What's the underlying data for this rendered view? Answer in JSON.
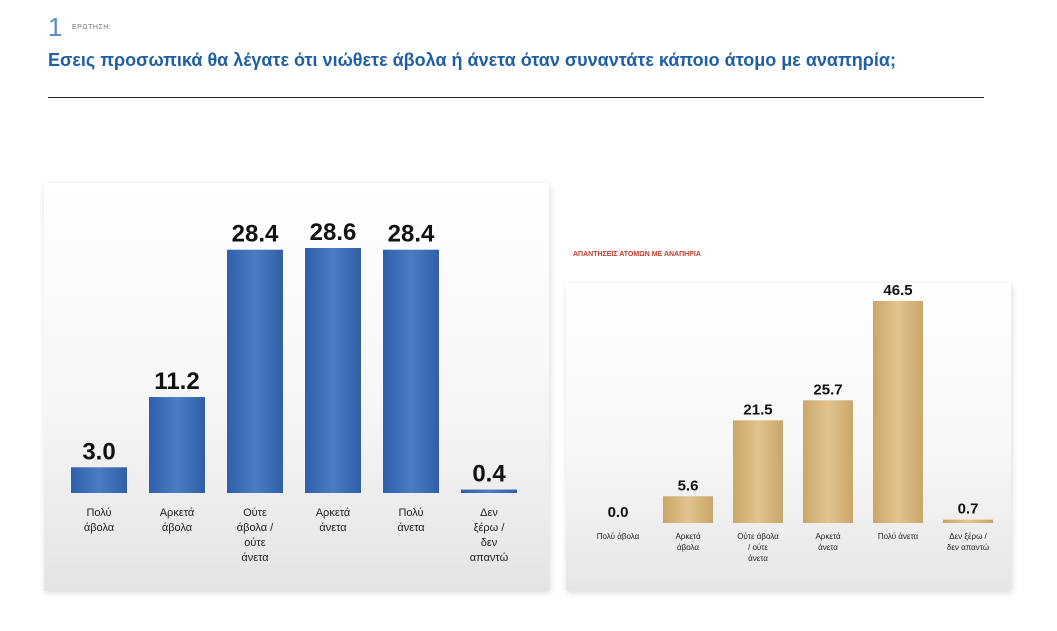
{
  "header": {
    "slide_number": "1",
    "tag": "ΕΡΩΤΗΣΗ:",
    "question": "Εσεις προσωπικά θα λέγατε ότι νιώθετε άβολα ή άνετα όταν συναντάτε κάποιο άτομο με αναπηρία;"
  },
  "chart_data": [
    {
      "type": "bar",
      "title": "",
      "categories": [
        "Πολύ άβολα",
        "Αρκετά άβολα",
        "Ούτε άβολα / ούτε άνετα",
        "Αρκετά άνετα",
        "Πολύ άνετα",
        "Δεν ξέρω / δεν απαντώ"
      ],
      "values": [
        3.0,
        11.2,
        28.4,
        28.6,
        28.4,
        0.4
      ],
      "ylim": [
        0,
        28.6
      ],
      "grid": false,
      "colors": {
        "bar": "#2f5fa8",
        "bar_light": "#4a7cc4"
      }
    },
    {
      "type": "bar",
      "title": "ΑΠΑΝΤΗΣΕΙΣ ΑΤΟΜΩΝ ΜΕ ΑΝΑΠΗΡΙΑ",
      "categories": [
        "Πολύ άβολα",
        "Αρκετά άβολα",
        "Ούτε άβολα / ούτε άνετα",
        "Αρκετά άνετα",
        "Πολύ άνετα",
        "Δεν ξέρω / δεν απαντώ"
      ],
      "values": [
        0.0,
        5.6,
        21.5,
        25.7,
        46.5,
        0.7
      ],
      "ylim": [
        0,
        46.5
      ],
      "grid": false,
      "colors": {
        "bar": "#e3c48e",
        "bar_dark": "#c9a66a"
      }
    }
  ]
}
